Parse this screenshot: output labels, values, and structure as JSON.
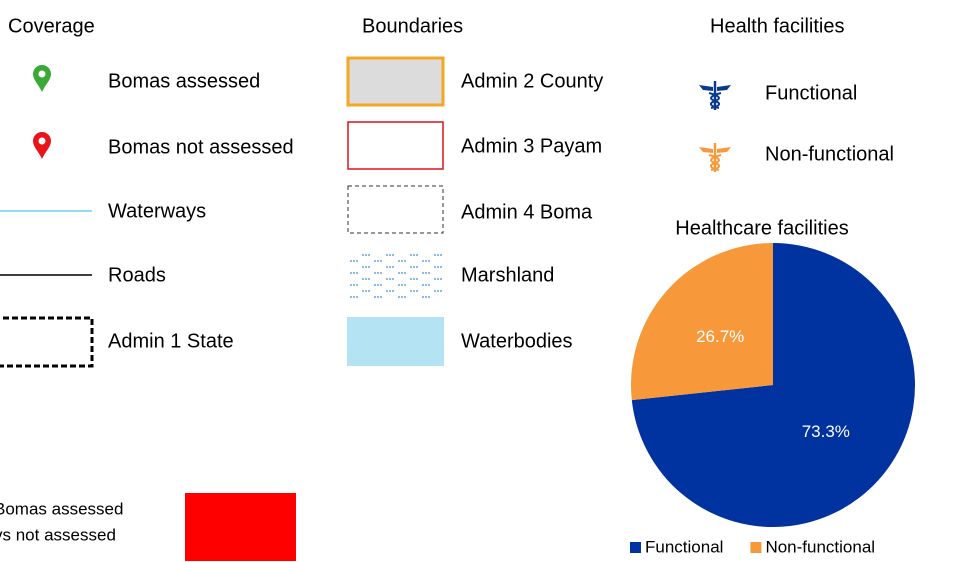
{
  "coverage": {
    "title": "Coverage",
    "items": [
      "Bomas assessed",
      "Bomas not assessed",
      "Waterways",
      "Roads",
      "Admin 1 State"
    ]
  },
  "boundaries": {
    "title": "Boundaries",
    "items": [
      "Admin 2 County",
      "Admin 3 Payam",
      "Admin 4 Boma",
      "Marshland",
      "Waterbodies"
    ]
  },
  "health_facilities": {
    "title": "Health facilities",
    "items": [
      "Functional",
      "Non-functional"
    ]
  },
  "bomas_label": [
    "Bomas assessed",
    "vs not assessed"
  ],
  "chart_data": {
    "type": "pie",
    "title": "Healthcare facilities",
    "categories": [
      "Functional",
      "Non-functional"
    ],
    "values": [
      73.3,
      26.7
    ],
    "value_labels": [
      "73.3%",
      "26.7%"
    ],
    "colors": [
      "#0033a0",
      "#f7993b"
    ],
    "legend": "bottom"
  }
}
